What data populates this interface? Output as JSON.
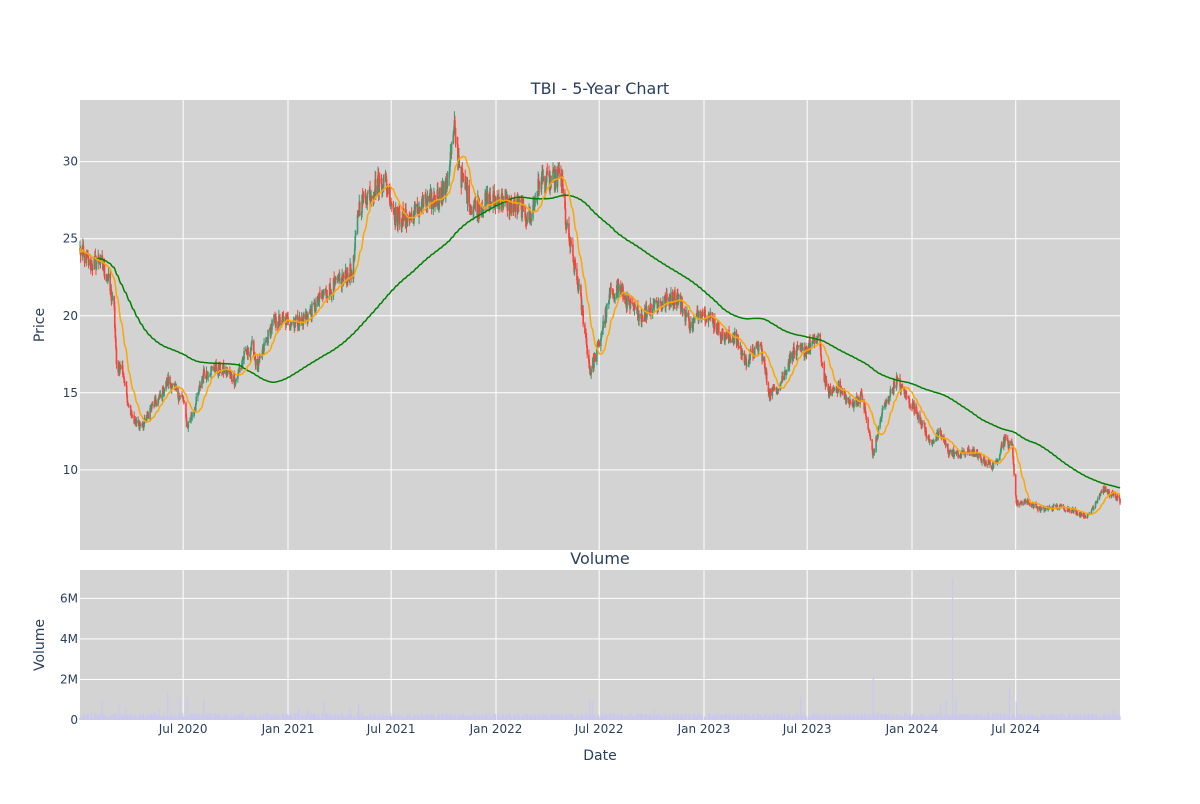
{
  "chart_data": [
    {
      "type": "candlestick",
      "title": "TBI - 5-Year Chart",
      "xlabel": "",
      "ylabel": "Price",
      "xlim": [
        "2020-01-02",
        "2024-12-31"
      ],
      "ylim": [
        4.8,
        34.0
      ],
      "yticks": [
        10,
        15,
        20,
        25,
        30
      ],
      "grid": true,
      "colors": {
        "background": "#d3d3d3",
        "grid": "#ffffff",
        "increasing": "#3d9970",
        "decreasing": "#ff4136",
        "ma_short": "#ffa500",
        "ma_long": "#008000",
        "text": "#2a3f5f"
      },
      "close_anchors": [
        [
          "2020-01-02",
          24.2
        ],
        [
          "2020-01-20",
          23.3
        ],
        [
          "2020-02-05",
          23.6
        ],
        [
          "2020-02-20",
          22.4
        ],
        [
          "2020-03-02",
          20.3
        ],
        [
          "2020-03-06",
          16.7
        ],
        [
          "2020-03-16",
          16.6
        ],
        [
          "2020-03-26",
          14.5
        ],
        [
          "2020-04-08",
          13.0
        ],
        [
          "2020-04-22",
          12.9
        ],
        [
          "2020-05-05",
          14.0
        ],
        [
          "2020-05-20",
          14.6
        ],
        [
          "2020-06-05",
          15.8
        ],
        [
          "2020-06-20",
          15.0
        ],
        [
          "2020-07-01",
          14.5
        ],
        [
          "2020-07-08",
          12.8
        ],
        [
          "2020-07-22",
          14.1
        ],
        [
          "2020-08-05",
          16.2
        ],
        [
          "2020-08-25",
          16.6
        ],
        [
          "2020-09-15",
          16.4
        ],
        [
          "2020-10-01",
          15.8
        ],
        [
          "2020-10-15",
          17.3
        ],
        [
          "2020-11-01",
          18.0
        ],
        [
          "2020-11-08",
          16.4
        ],
        [
          "2020-11-20",
          18.0
        ],
        [
          "2020-12-05",
          19.5
        ],
        [
          "2020-12-25",
          19.7
        ],
        [
          "2021-01-20",
          19.6
        ],
        [
          "2021-02-10",
          20.2
        ],
        [
          "2021-03-05",
          21.4
        ],
        [
          "2021-03-25",
          22.0
        ],
        [
          "2021-04-15",
          22.6
        ],
        [
          "2021-04-25",
          23.0
        ],
        [
          "2021-05-05",
          27.0
        ],
        [
          "2021-05-15",
          27.6
        ],
        [
          "2021-06-01",
          28.3
        ],
        [
          "2021-06-20",
          28.9
        ],
        [
          "2021-07-10",
          26.4
        ],
        [
          "2021-08-01",
          26.3
        ],
        [
          "2021-08-25",
          27.2
        ],
        [
          "2021-09-15",
          27.5
        ],
        [
          "2021-10-05",
          28.3
        ],
        [
          "2021-10-20",
          32.0
        ],
        [
          "2021-11-01",
          29.0
        ],
        [
          "2021-11-20",
          27.0
        ],
        [
          "2021-12-10",
          27.3
        ],
        [
          "2022-01-05",
          27.6
        ],
        [
          "2022-01-25",
          27.2
        ],
        [
          "2022-02-15",
          27.0
        ],
        [
          "2022-03-01",
          26.2
        ],
        [
          "2022-03-20",
          28.8
        ],
        [
          "2022-04-05",
          28.6
        ],
        [
          "2022-04-25",
          29.1
        ],
        [
          "2022-05-05",
          25.6
        ],
        [
          "2022-05-25",
          22.0
        ],
        [
          "2022-06-05",
          19.4
        ],
        [
          "2022-06-15",
          16.3
        ],
        [
          "2022-07-01",
          18.2
        ],
        [
          "2022-07-20",
          21.3
        ],
        [
          "2022-08-05",
          21.8
        ],
        [
          "2022-08-25",
          20.5
        ],
        [
          "2022-09-15",
          20.0
        ],
        [
          "2022-10-05",
          20.8
        ],
        [
          "2022-10-25",
          20.9
        ],
        [
          "2022-11-15",
          21.3
        ],
        [
          "2022-12-10",
          19.2
        ],
        [
          "2022-12-25",
          20.4
        ],
        [
          "2023-01-15",
          19.8
        ],
        [
          "2023-02-05",
          18.6
        ],
        [
          "2023-02-25",
          18.6
        ],
        [
          "2023-03-15",
          17.0
        ],
        [
          "2023-04-10",
          18.1
        ],
        [
          "2023-04-25",
          15.0
        ],
        [
          "2023-05-15",
          15.6
        ],
        [
          "2023-06-05",
          17.6
        ],
        [
          "2023-06-25",
          17.7
        ],
        [
          "2023-07-20",
          18.6
        ],
        [
          "2023-08-05",
          15.0
        ],
        [
          "2023-08-25",
          15.4
        ],
        [
          "2023-09-15",
          14.2
        ],
        [
          "2023-10-05",
          14.8
        ],
        [
          "2023-10-25",
          11.0
        ],
        [
          "2023-11-10",
          13.8
        ],
        [
          "2023-12-05",
          15.8
        ],
        [
          "2023-12-25",
          14.6
        ],
        [
          "2024-01-15",
          13.4
        ],
        [
          "2024-02-01",
          11.8
        ],
        [
          "2024-02-20",
          12.3
        ],
        [
          "2024-03-05",
          11.2
        ],
        [
          "2024-03-25",
          11.0
        ],
        [
          "2024-04-15",
          11.2
        ],
        [
          "2024-05-05",
          10.6
        ],
        [
          "2024-05-25",
          10.2
        ],
        [
          "2024-06-10",
          12.0
        ],
        [
          "2024-06-25",
          11.5
        ],
        [
          "2024-07-02",
          7.8
        ],
        [
          "2024-07-20",
          8.0
        ],
        [
          "2024-08-15",
          7.4
        ],
        [
          "2024-09-10",
          7.6
        ],
        [
          "2024-10-01",
          7.5
        ],
        [
          "2024-10-20",
          7.2
        ],
        [
          "2024-11-05",
          7.0
        ],
        [
          "2024-12-01",
          8.8
        ],
        [
          "2024-12-31",
          8.0
        ]
      ],
      "overlays": [
        {
          "kind": "moving-average",
          "window": 20
        },
        {
          "kind": "moving-average",
          "window": 200
        }
      ]
    },
    {
      "type": "bar",
      "title": "Volume",
      "xlabel": "Date",
      "ylabel": "Volume",
      "ylim": [
        0,
        7400000
      ],
      "yticks": [
        0,
        2000000,
        4000000,
        6000000
      ],
      "ytick_labels": [
        "0",
        "2M",
        "4M",
        "6M"
      ],
      "xticks": [
        "2020-07-01",
        "2021-01-01",
        "2021-07-01",
        "2022-01-01",
        "2022-07-01",
        "2023-01-01",
        "2023-07-01",
        "2024-01-01",
        "2024-07-01"
      ],
      "xtick_labels": [
        "Jul 2020",
        "Jan 2021",
        "Jul 2021",
        "Jan 2022",
        "Jul 2022",
        "Jan 2023",
        "Jul 2023",
        "Jan 2024",
        "Jul 2024"
      ],
      "bar_color": "#c8c8f0",
      "spikes": [
        [
          "2020-02-10",
          900000
        ],
        [
          "2020-03-10",
          700000
        ],
        [
          "2020-03-23",
          600000
        ],
        [
          "2020-05-20",
          600000
        ],
        [
          "2020-06-04",
          1400000
        ],
        [
          "2020-06-25",
          1100000
        ],
        [
          "2020-07-08",
          1100000
        ],
        [
          "2020-08-06",
          1000000
        ],
        [
          "2021-01-20",
          600000
        ],
        [
          "2021-02-05",
          500000
        ],
        [
          "2021-03-05",
          900000
        ],
        [
          "2021-04-20",
          600000
        ],
        [
          "2021-05-05",
          800000
        ],
        [
          "2022-06-15",
          1000000
        ],
        [
          "2022-06-20",
          900000
        ],
        [
          "2022-10-05",
          500000
        ],
        [
          "2023-06-20",
          1100000
        ],
        [
          "2023-10-25",
          2200000
        ],
        [
          "2023-12-10",
          2800000
        ],
        [
          "2024-02-20",
          800000
        ],
        [
          "2024-03-01",
          1000000
        ],
        [
          "2024-03-12",
          7000000
        ],
        [
          "2024-03-18",
          1100000
        ],
        [
          "2024-06-20",
          1600000
        ],
        [
          "2024-07-02",
          900000
        ],
        [
          "2024-12-20",
          500000
        ]
      ]
    }
  ]
}
